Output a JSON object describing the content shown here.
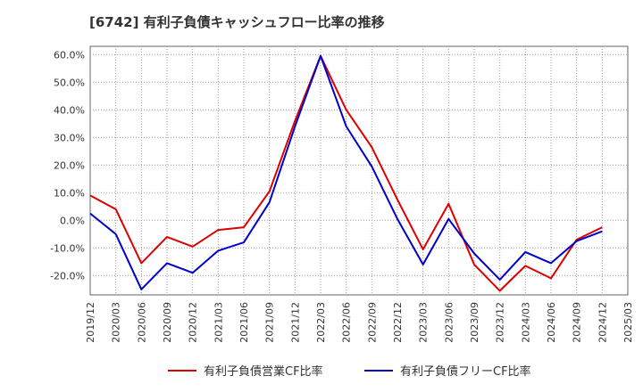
{
  "chart_data": {
    "type": "line",
    "title": "[6742]  有利子負債キャッシュフロー比率の推移",
    "xlabel": "",
    "ylabel": "",
    "x": [
      "2019/12",
      "2020/03",
      "2020/06",
      "2020/09",
      "2020/12",
      "2021/03",
      "2021/06",
      "2021/09",
      "2021/12",
      "2022/03",
      "2022/06",
      "2022/09",
      "2022/12",
      "2023/03",
      "2023/06",
      "2023/09",
      "2023/12",
      "2024/03",
      "2024/06",
      "2024/09",
      "2024/12",
      "2025/03"
    ],
    "y_ticks": [
      "60.0%",
      "50.0%",
      "40.0%",
      "30.0%",
      "20.0%",
      "10.0%",
      "0.0%",
      "-10.0%",
      "-20.0%"
    ],
    "y_tick_values": [
      60,
      50,
      40,
      30,
      20,
      10,
      0,
      -10,
      -20
    ],
    "ylim": [
      -27,
      63
    ],
    "grid": true,
    "legend_position": "bottom",
    "series": [
      {
        "name": "有利子負債営業CF比率",
        "color": "#dd0000",
        "values": [
          9.0,
          4.0,
          -15.5,
          -6.0,
          -9.5,
          -3.5,
          -2.5,
          10.5,
          36.0,
          59.5,
          40.0,
          26.5,
          7.5,
          -10.5,
          6.0,
          -16.0,
          -25.5,
          -16.5,
          -21.0,
          -7.0,
          -2.5,
          null
        ]
      },
      {
        "name": "有利子負債フリーCF比率",
        "color": "#0000cc",
        "values": [
          2.5,
          -5.0,
          -25.0,
          -15.5,
          -19.0,
          -11.0,
          -8.0,
          6.5,
          34.0,
          59.5,
          34.0,
          19.5,
          0.5,
          -16.0,
          0.5,
          -12.0,
          -21.5,
          -11.5,
          -15.5,
          -7.5,
          -4.0,
          null
        ]
      }
    ]
  }
}
